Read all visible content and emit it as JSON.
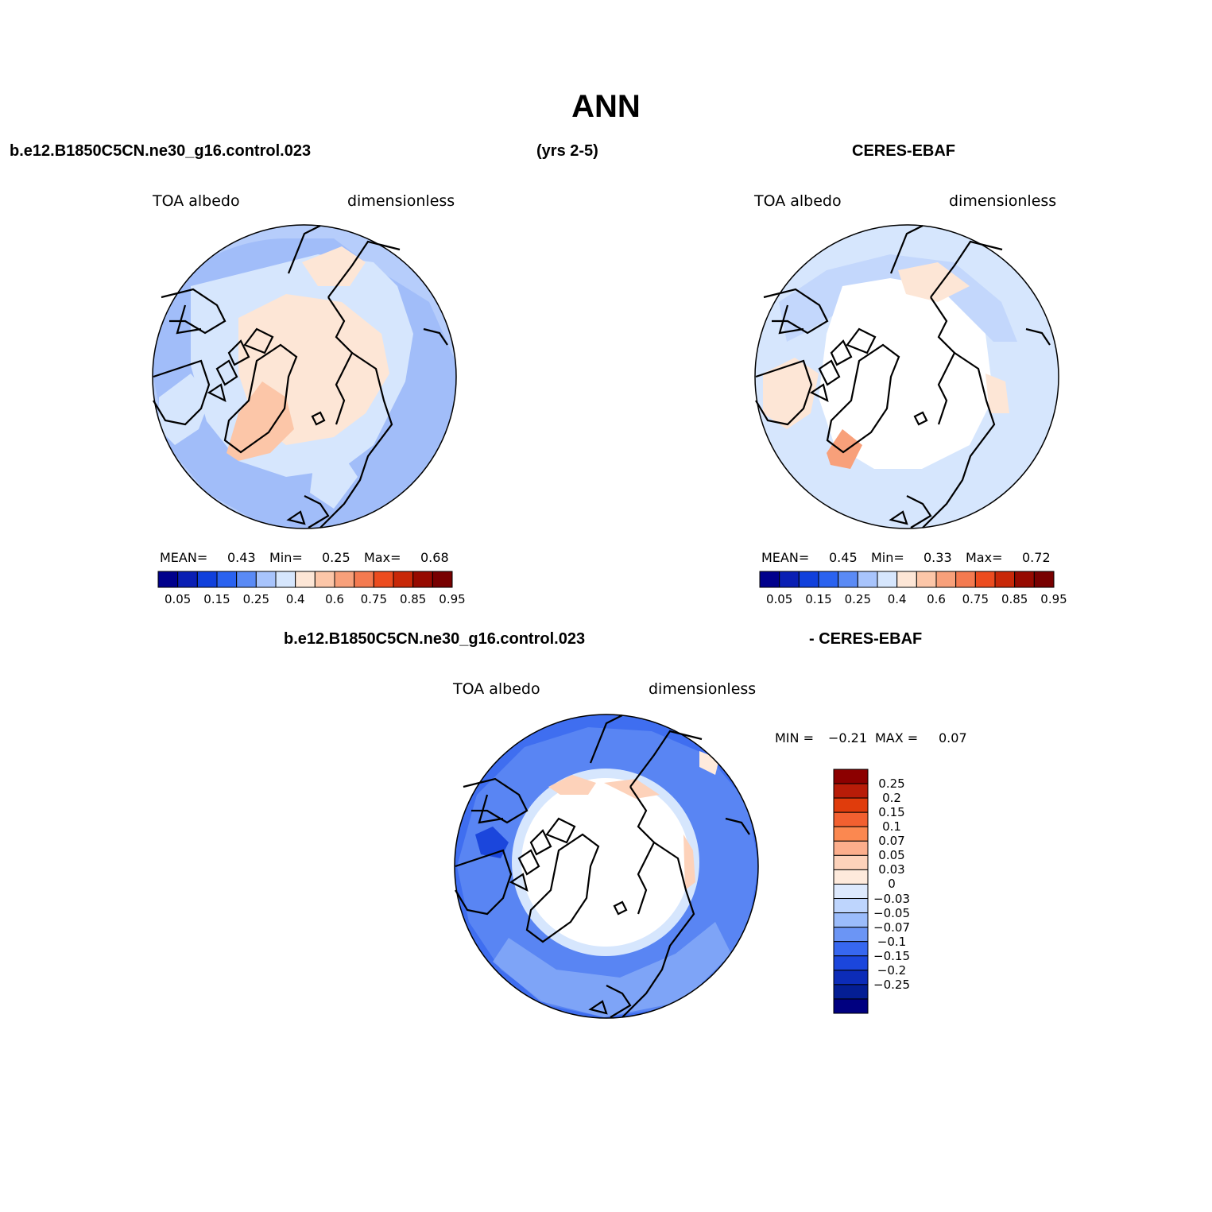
{
  "title": "ANN",
  "header": {
    "case_name": "b.e12.B1850C5CN.ne30_g16.control.023",
    "years": "(yrs 2-5)",
    "obs_name": "CERES-EBAF"
  },
  "diff_header": {
    "case_name": "b.e12.B1850C5CN.ne30_g16.control.023",
    "obs_name": "- CERES-EBAF"
  },
  "panels": [
    {
      "variable": "TOA albedo",
      "units": "dimensionless",
      "stats": {
        "mean_label": "MEAN=",
        "mean": "0.43",
        "min_label": "Min=",
        "min": "0.25",
        "max_label": "Max=",
        "max": "0.68"
      }
    },
    {
      "variable": "TOA albedo",
      "units": "dimensionless",
      "stats": {
        "mean_label": "MEAN=",
        "mean": "0.45",
        "min_label": "Min=",
        "min": "0.33",
        "max_label": "Max=",
        "max": "0.72"
      }
    },
    {
      "variable": "TOA albedo",
      "units": "dimensionless",
      "stats": {
        "min_label": "MIN =",
        "min": "−0.21",
        "max_label": "MAX =",
        "max": "0.07"
      }
    }
  ],
  "colorbar_horizontal": {
    "colors": [
      "#00008c",
      "#0a1fb4",
      "#1040dc",
      "#2a62f0",
      "#5a8af5",
      "#a8c4fc",
      "#d6e6fd",
      "#fde6d6",
      "#fcc6a8",
      "#f8a07a",
      "#f47a50",
      "#ec4c1f",
      "#c82808",
      "#960a00",
      "#780000"
    ],
    "ticks": [
      "0.05",
      "0.15",
      "0.25",
      "0.4",
      "0.6",
      "0.75",
      "0.85",
      "0.95"
    ]
  },
  "colorbar_vertical": {
    "colors": [
      "#8c0000",
      "#b81c08",
      "#e03c0c",
      "#f26030",
      "#fb8850",
      "#fcae8c",
      "#fdd2ba",
      "#feeadc",
      "#dde9fd",
      "#bed5fd",
      "#9bbcfb",
      "#6b95f5",
      "#3767ef",
      "#1b46dc",
      "#0c2cb8",
      "#041e94",
      "#000080"
    ],
    "ticks": [
      "0.25",
      "0.2",
      "0.15",
      "0.1",
      "0.07",
      "0.05",
      "0.03",
      "0",
      "−0.03",
      "−0.05",
      "−0.07",
      "−0.1",
      "−0.15",
      "−0.2",
      "−0.25"
    ]
  },
  "map_colors": {
    "land_bright": "#fde6d6",
    "orange": "#fcc6a8",
    "pale_blue": "#d6e6fd",
    "light_blue": "#b6cdfb",
    "mid_blue": "#8fb0f8",
    "blue": "#3f6ef0",
    "deep_blue": "#2151e6",
    "white": "#ffffff"
  }
}
